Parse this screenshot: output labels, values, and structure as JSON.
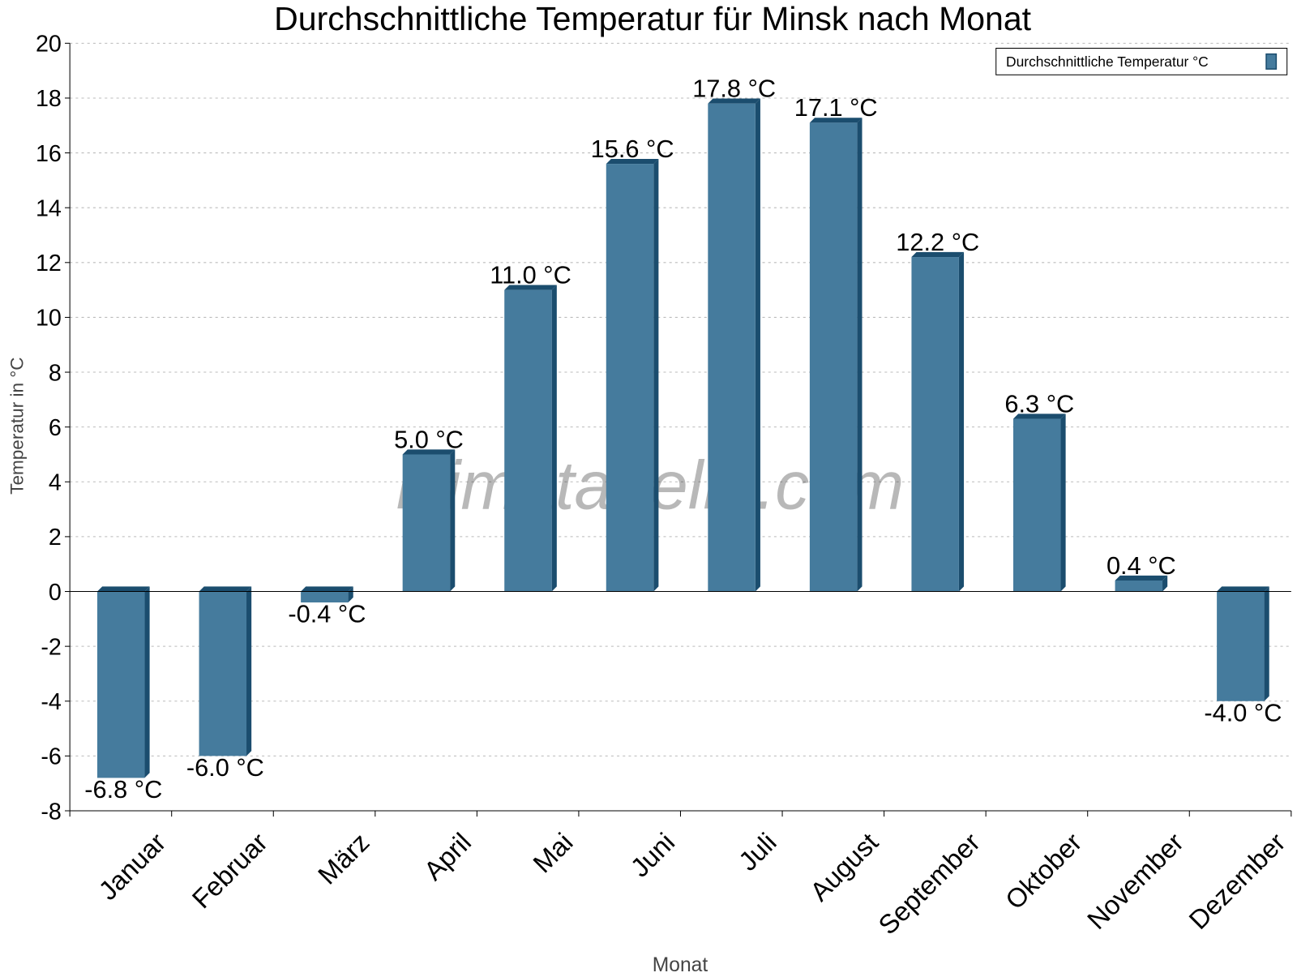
{
  "chart_data": {
    "type": "bar",
    "title": "Durchschnittliche Temperatur für Minsk nach Monat",
    "xlabel": "Monat",
    "ylabel": "Temperatur in °C",
    "ylim": [
      -8,
      20
    ],
    "yticks": [
      -8,
      -6,
      -4,
      -2,
      0,
      2,
      4,
      6,
      8,
      10,
      12,
      14,
      16,
      18,
      20
    ],
    "grid": true,
    "legend_position": "top-right",
    "categories": [
      "Januar",
      "Februar",
      "März",
      "April",
      "Mai",
      "Juni",
      "Juli",
      "August",
      "September",
      "Oktober",
      "November",
      "Dezember"
    ],
    "series": [
      {
        "name": "Durchschnittliche Temperatur °C",
        "values": [
          -6.8,
          -6.0,
          -0.4,
          5.0,
          11.0,
          15.6,
          17.8,
          17.1,
          12.2,
          6.3,
          0.4,
          -4.0
        ],
        "labels": [
          "-6.8 °C",
          "-6.0 °C",
          "-0.4 °C",
          "5.0 °C",
          "11.0 °C",
          "15.6 °C",
          "17.8 °C",
          "17.1 °C",
          "12.2 °C",
          "6.3 °C",
          "0.4 °C",
          "-4.0 °C"
        ],
        "color": "#457b9d",
        "side_color": "#1b4d6e"
      }
    ],
    "watermark": "klimatabelle.com"
  }
}
